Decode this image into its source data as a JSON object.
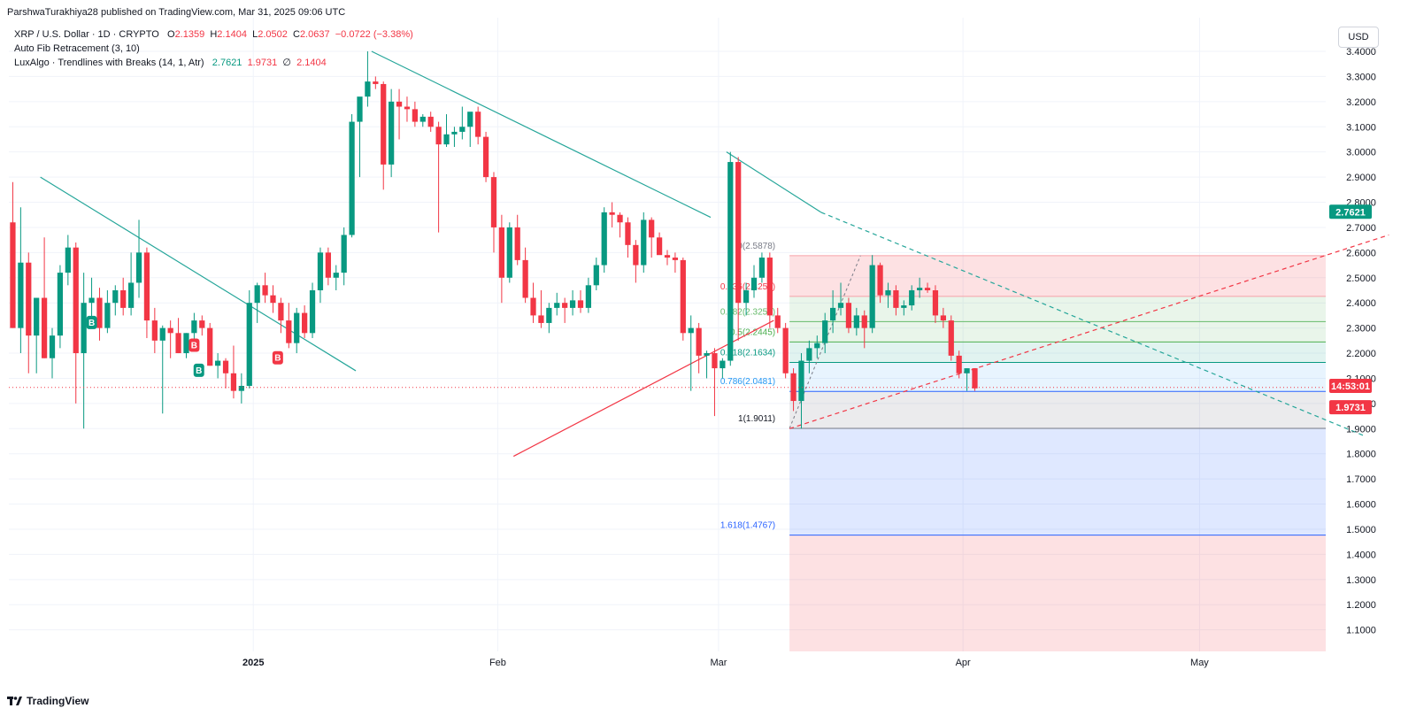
{
  "publisher_line": "ParshwaTurakhiya28 published on TradingView.com, Mar 31, 2025 09:06 UTC",
  "symbol": {
    "name": "XRP / U.S. Dollar · 1D · CRYPTO",
    "o_label": "O",
    "o": "2.1359",
    "h_label": "H",
    "h": "2.1404",
    "l_label": "L",
    "l": "2.0502",
    "c_label": "C",
    "c": "2.0637",
    "change": "−0.0722 (−3.38%)"
  },
  "indicators": {
    "fib": "Auto Fib Retracement (3, 10)",
    "lux_name": "LuxAlgo · Trendlines with Breaks (14, 1, Atr)",
    "lux_v1": "2.7621",
    "lux_v2": "1.9731",
    "lux_v3": "2.1404"
  },
  "currency": "USD",
  "brand": "TradingView",
  "colors": {
    "up": "#089981",
    "down": "#f23645",
    "trend_green": "#26a69a",
    "trend_red": "#f23645",
    "fib_blue": "#2962ff"
  },
  "price_axis": {
    "ticks": [
      "3.4000",
      "3.3000",
      "3.2000",
      "3.1000",
      "3.0000",
      "2.9000",
      "2.8000",
      "2.7000",
      "2.6000",
      "2.5000",
      "2.4000",
      "2.3000",
      "2.2000",
      "2.1000",
      "2.0000",
      "1.9000",
      "1.8000",
      "1.7000",
      "1.6000",
      "1.5000",
      "1.4000",
      "1.3000",
      "1.2000",
      "1.1000"
    ],
    "badge_green": "2.7621",
    "badge_time": "14:53:01",
    "badge_red": "1.9731"
  },
  "time_axis": {
    "labels": [
      "2025",
      "Feb",
      "Mar",
      "Apr",
      "May"
    ]
  },
  "fib_levels": [
    {
      "label": "0(2.5878)",
      "price": 2.5878
    },
    {
      "label": "0.236(2.4257)",
      "price": 2.4257
    },
    {
      "label": "0.382(2.3254)",
      "price": 2.3254
    },
    {
      "label": "0.5(2.2445)",
      "price": 2.2445
    },
    {
      "label": "0.618(2.1634)",
      "price": 2.1634
    },
    {
      "label": "0.786(2.0481)",
      "price": 2.0481
    },
    {
      "label": "1(1.9011)",
      "price": 1.9011
    },
    {
      "label": "1.618(1.4767)",
      "price": 1.4767
    }
  ],
  "signals": [
    {
      "label": "B",
      "type": "buy",
      "day": 10,
      "price": 2.32
    },
    {
      "label": "B",
      "type": "sell",
      "day": 23,
      "price": 2.23
    },
    {
      "label": "B",
      "type": "buy",
      "day": 23.6,
      "price": 2.13
    },
    {
      "label": "B",
      "type": "sell",
      "day": 33.6,
      "price": 2.18
    }
  ],
  "chart_data": {
    "type": "candlestick",
    "symbol": "XRP / U.S. Dollar",
    "interval": "1D",
    "x_range": [
      "2024-12-01",
      "2025-05-17"
    ],
    "y_range": [
      1.0,
      3.45
    ],
    "candles_note": "approximate daily OHLC starting 2024-12-01",
    "ohlc": [
      [
        2.72,
        2.88,
        2.3,
        2.3
      ],
      [
        2.3,
        2.78,
        2.2,
        2.56
      ],
      [
        2.56,
        2.6,
        2.12,
        2.27
      ],
      [
        2.27,
        2.42,
        2.12,
        2.42
      ],
      [
        2.42,
        2.66,
        2.18,
        2.18
      ],
      [
        2.18,
        2.3,
        2.1,
        2.27
      ],
      [
        2.27,
        2.55,
        2.22,
        2.52
      ],
      [
        2.52,
        2.67,
        2.47,
        2.62
      ],
      [
        2.62,
        2.64,
        2.0,
        2.2
      ],
      [
        2.2,
        2.52,
        1.9,
        2.4
      ],
      [
        2.4,
        2.5,
        2.3,
        2.42
      ],
      [
        2.42,
        2.46,
        2.25,
        2.3
      ],
      [
        2.3,
        2.45,
        2.28,
        2.4
      ],
      [
        2.4,
        2.47,
        2.35,
        2.45
      ],
      [
        2.45,
        2.5,
        2.35,
        2.38
      ],
      [
        2.38,
        2.6,
        2.35,
        2.48
      ],
      [
        2.48,
        2.73,
        2.42,
        2.6
      ],
      [
        2.6,
        2.62,
        2.26,
        2.33
      ],
      [
        2.33,
        2.38,
        2.2,
        2.25
      ],
      [
        2.25,
        2.31,
        1.96,
        2.3
      ],
      [
        2.3,
        2.33,
        2.18,
        2.28
      ],
      [
        2.28,
        2.34,
        2.2,
        2.2
      ],
      [
        2.2,
        2.28,
        2.18,
        2.28
      ],
      [
        2.28,
        2.36,
        2.22,
        2.33
      ],
      [
        2.33,
        2.35,
        2.27,
        2.3
      ],
      [
        2.3,
        2.32,
        2.15,
        2.15
      ],
      [
        2.15,
        2.2,
        2.1,
        2.17
      ],
      [
        2.17,
        2.18,
        2.06,
        2.12
      ],
      [
        2.12,
        2.23,
        2.02,
        2.05
      ],
      [
        2.05,
        2.12,
        2.0,
        2.07
      ],
      [
        2.07,
        2.45,
        2.06,
        2.4
      ],
      [
        2.4,
        2.48,
        2.32,
        2.47
      ],
      [
        2.47,
        2.52,
        2.4,
        2.43
      ],
      [
        2.43,
        2.47,
        2.36,
        2.4
      ],
      [
        2.4,
        2.42,
        2.28,
        2.33
      ],
      [
        2.33,
        2.4,
        2.22,
        2.24
      ],
      [
        2.24,
        2.38,
        2.2,
        2.36
      ],
      [
        2.36,
        2.39,
        2.26,
        2.28
      ],
      [
        2.28,
        2.48,
        2.26,
        2.45
      ],
      [
        2.45,
        2.62,
        2.4,
        2.6
      ],
      [
        2.6,
        2.62,
        2.47,
        2.5
      ],
      [
        2.5,
        2.55,
        2.45,
        2.52
      ],
      [
        2.52,
        2.7,
        2.47,
        2.67
      ],
      [
        2.67,
        3.15,
        2.66,
        3.12
      ],
      [
        3.12,
        3.2,
        2.9,
        3.22
      ],
      [
        3.22,
        3.4,
        3.18,
        3.28
      ],
      [
        3.28,
        3.3,
        3.25,
        3.27
      ],
      [
        3.27,
        3.28,
        2.85,
        2.95
      ],
      [
        2.95,
        3.25,
        2.9,
        3.2
      ],
      [
        3.2,
        3.25,
        3.05,
        3.18
      ],
      [
        3.18,
        3.22,
        3.12,
        3.17
      ],
      [
        3.17,
        3.2,
        3.1,
        3.12
      ],
      [
        3.12,
        3.15,
        3.1,
        3.14
      ],
      [
        3.14,
        3.16,
        3.08,
        3.1
      ],
      [
        3.1,
        3.12,
        2.68,
        3.03
      ],
      [
        3.03,
        3.15,
        3.02,
        3.07
      ],
      [
        3.07,
        3.1,
        3.02,
        3.08
      ],
      [
        3.08,
        3.18,
        3.05,
        3.1
      ],
      [
        3.1,
        3.15,
        3.02,
        3.16
      ],
      [
        3.16,
        3.18,
        3.03,
        3.06
      ],
      [
        3.06,
        3.08,
        2.88,
        2.9
      ],
      [
        2.9,
        2.92,
        2.6,
        2.7
      ],
      [
        2.7,
        2.75,
        2.4,
        2.5
      ],
      [
        2.5,
        2.72,
        2.48,
        2.7
      ],
      [
        2.7,
        2.75,
        2.55,
        2.57
      ],
      [
        2.57,
        2.62,
        2.4,
        2.42
      ],
      [
        2.42,
        2.48,
        2.32,
        2.35
      ],
      [
        2.35,
        2.45,
        2.3,
        2.32
      ],
      [
        2.32,
        2.4,
        2.28,
        2.38
      ],
      [
        2.38,
        2.44,
        2.35,
        2.4
      ],
      [
        2.4,
        2.42,
        2.32,
        2.38
      ],
      [
        2.38,
        2.45,
        2.35,
        2.41
      ],
      [
        2.41,
        2.45,
        2.36,
        2.38
      ],
      [
        2.38,
        2.5,
        2.36,
        2.47
      ],
      [
        2.47,
        2.58,
        2.45,
        2.55
      ],
      [
        2.55,
        2.78,
        2.52,
        2.76
      ],
      [
        2.76,
        2.8,
        2.7,
        2.75
      ],
      [
        2.75,
        2.76,
        2.66,
        2.72
      ],
      [
        2.72,
        2.74,
        2.58,
        2.63
      ],
      [
        2.63,
        2.65,
        2.48,
        2.55
      ],
      [
        2.55,
        2.76,
        2.52,
        2.73
      ],
      [
        2.73,
        2.74,
        2.58,
        2.66
      ],
      [
        2.66,
        2.68,
        2.6,
        2.59
      ],
      [
        2.59,
        2.61,
        2.55,
        2.58
      ],
      [
        2.58,
        2.6,
        2.52,
        2.57
      ],
      [
        2.57,
        2.58,
        2.25,
        2.28
      ],
      [
        2.28,
        2.35,
        2.05,
        2.3
      ],
      [
        2.3,
        2.32,
        2.12,
        2.19
      ],
      [
        2.19,
        2.21,
        2.1,
        2.2
      ],
      [
        2.2,
        2.22,
        1.95,
        2.14
      ],
      [
        2.14,
        2.18,
        2.1,
        2.17
      ],
      [
        2.17,
        3.0,
        2.15,
        2.96
      ],
      [
        2.96,
        2.98,
        2.25,
        2.4
      ],
      [
        2.4,
        2.48,
        2.35,
        2.45
      ],
      [
        2.45,
        2.55,
        2.42,
        2.5
      ],
      [
        2.5,
        2.6,
        2.48,
        2.58
      ],
      [
        2.58,
        2.6,
        2.3,
        2.35
      ],
      [
        2.35,
        2.38,
        2.28,
        2.3
      ],
      [
        2.3,
        2.32,
        2.1,
        2.12
      ],
      [
        2.12,
        2.14,
        1.97,
        2.01
      ],
      [
        2.01,
        2.2,
        1.9,
        2.17
      ],
      [
        2.17,
        2.25,
        2.12,
        2.22
      ],
      [
        2.22,
        2.27,
        2.18,
        2.24
      ],
      [
        2.24,
        2.36,
        2.2,
        2.33
      ],
      [
        2.33,
        2.45,
        2.28,
        2.38
      ],
      [
        2.38,
        2.48,
        2.35,
        2.4
      ],
      [
        2.4,
        2.42,
        2.28,
        2.3
      ],
      [
        2.3,
        2.38,
        2.27,
        2.35
      ],
      [
        2.35,
        2.37,
        2.22,
        2.3
      ],
      [
        2.3,
        2.59,
        2.28,
        2.55
      ],
      [
        2.55,
        2.56,
        2.4,
        2.43
      ],
      [
        2.43,
        2.48,
        2.38,
        2.45
      ],
      [
        2.45,
        2.47,
        2.35,
        2.38
      ],
      [
        2.38,
        2.41,
        2.35,
        2.39
      ],
      [
        2.39,
        2.47,
        2.37,
        2.45
      ],
      [
        2.45,
        2.5,
        2.42,
        2.46
      ],
      [
        2.46,
        2.48,
        2.44,
        2.45
      ],
      [
        2.45,
        2.47,
        2.32,
        2.35
      ],
      [
        2.35,
        2.38,
        2.3,
        2.33
      ],
      [
        2.33,
        2.35,
        2.17,
        2.19
      ],
      [
        2.19,
        2.21,
        2.1,
        2.12
      ],
      [
        2.12,
        2.14,
        2.05,
        2.14
      ],
      [
        2.14,
        2.14,
        2.05,
        2.06
      ]
    ],
    "trendlines": [
      {
        "color": "green",
        "from": [
          "2024-12-05",
          2.9
        ],
        "to": [
          "2025-01-14",
          2.13
        ]
      },
      {
        "color": "green",
        "from": [
          "2025-01-16",
          3.4
        ],
        "to": [
          "2025-02-28",
          2.74
        ]
      },
      {
        "color": "green",
        "from": [
          "2025-03-02",
          3.0
        ],
        "to": [
          "2025-03-14",
          2.76
        ]
      },
      {
        "color": "green",
        "from": [
          "2025-03-14",
          2.76
        ],
        "to": [
          "2025-05-22",
          1.87
        ],
        "dashed": true
      },
      {
        "color": "red",
        "from": [
          "2025-02-03",
          1.79
        ],
        "to": [
          "2025-03-08",
          2.33
        ]
      },
      {
        "color": "red",
        "from": [
          "2025-03-10",
          1.9
        ],
        "to": [
          "2025-05-25",
          2.67
        ],
        "dashed": true
      }
    ],
    "last_price": 2.0637
  }
}
